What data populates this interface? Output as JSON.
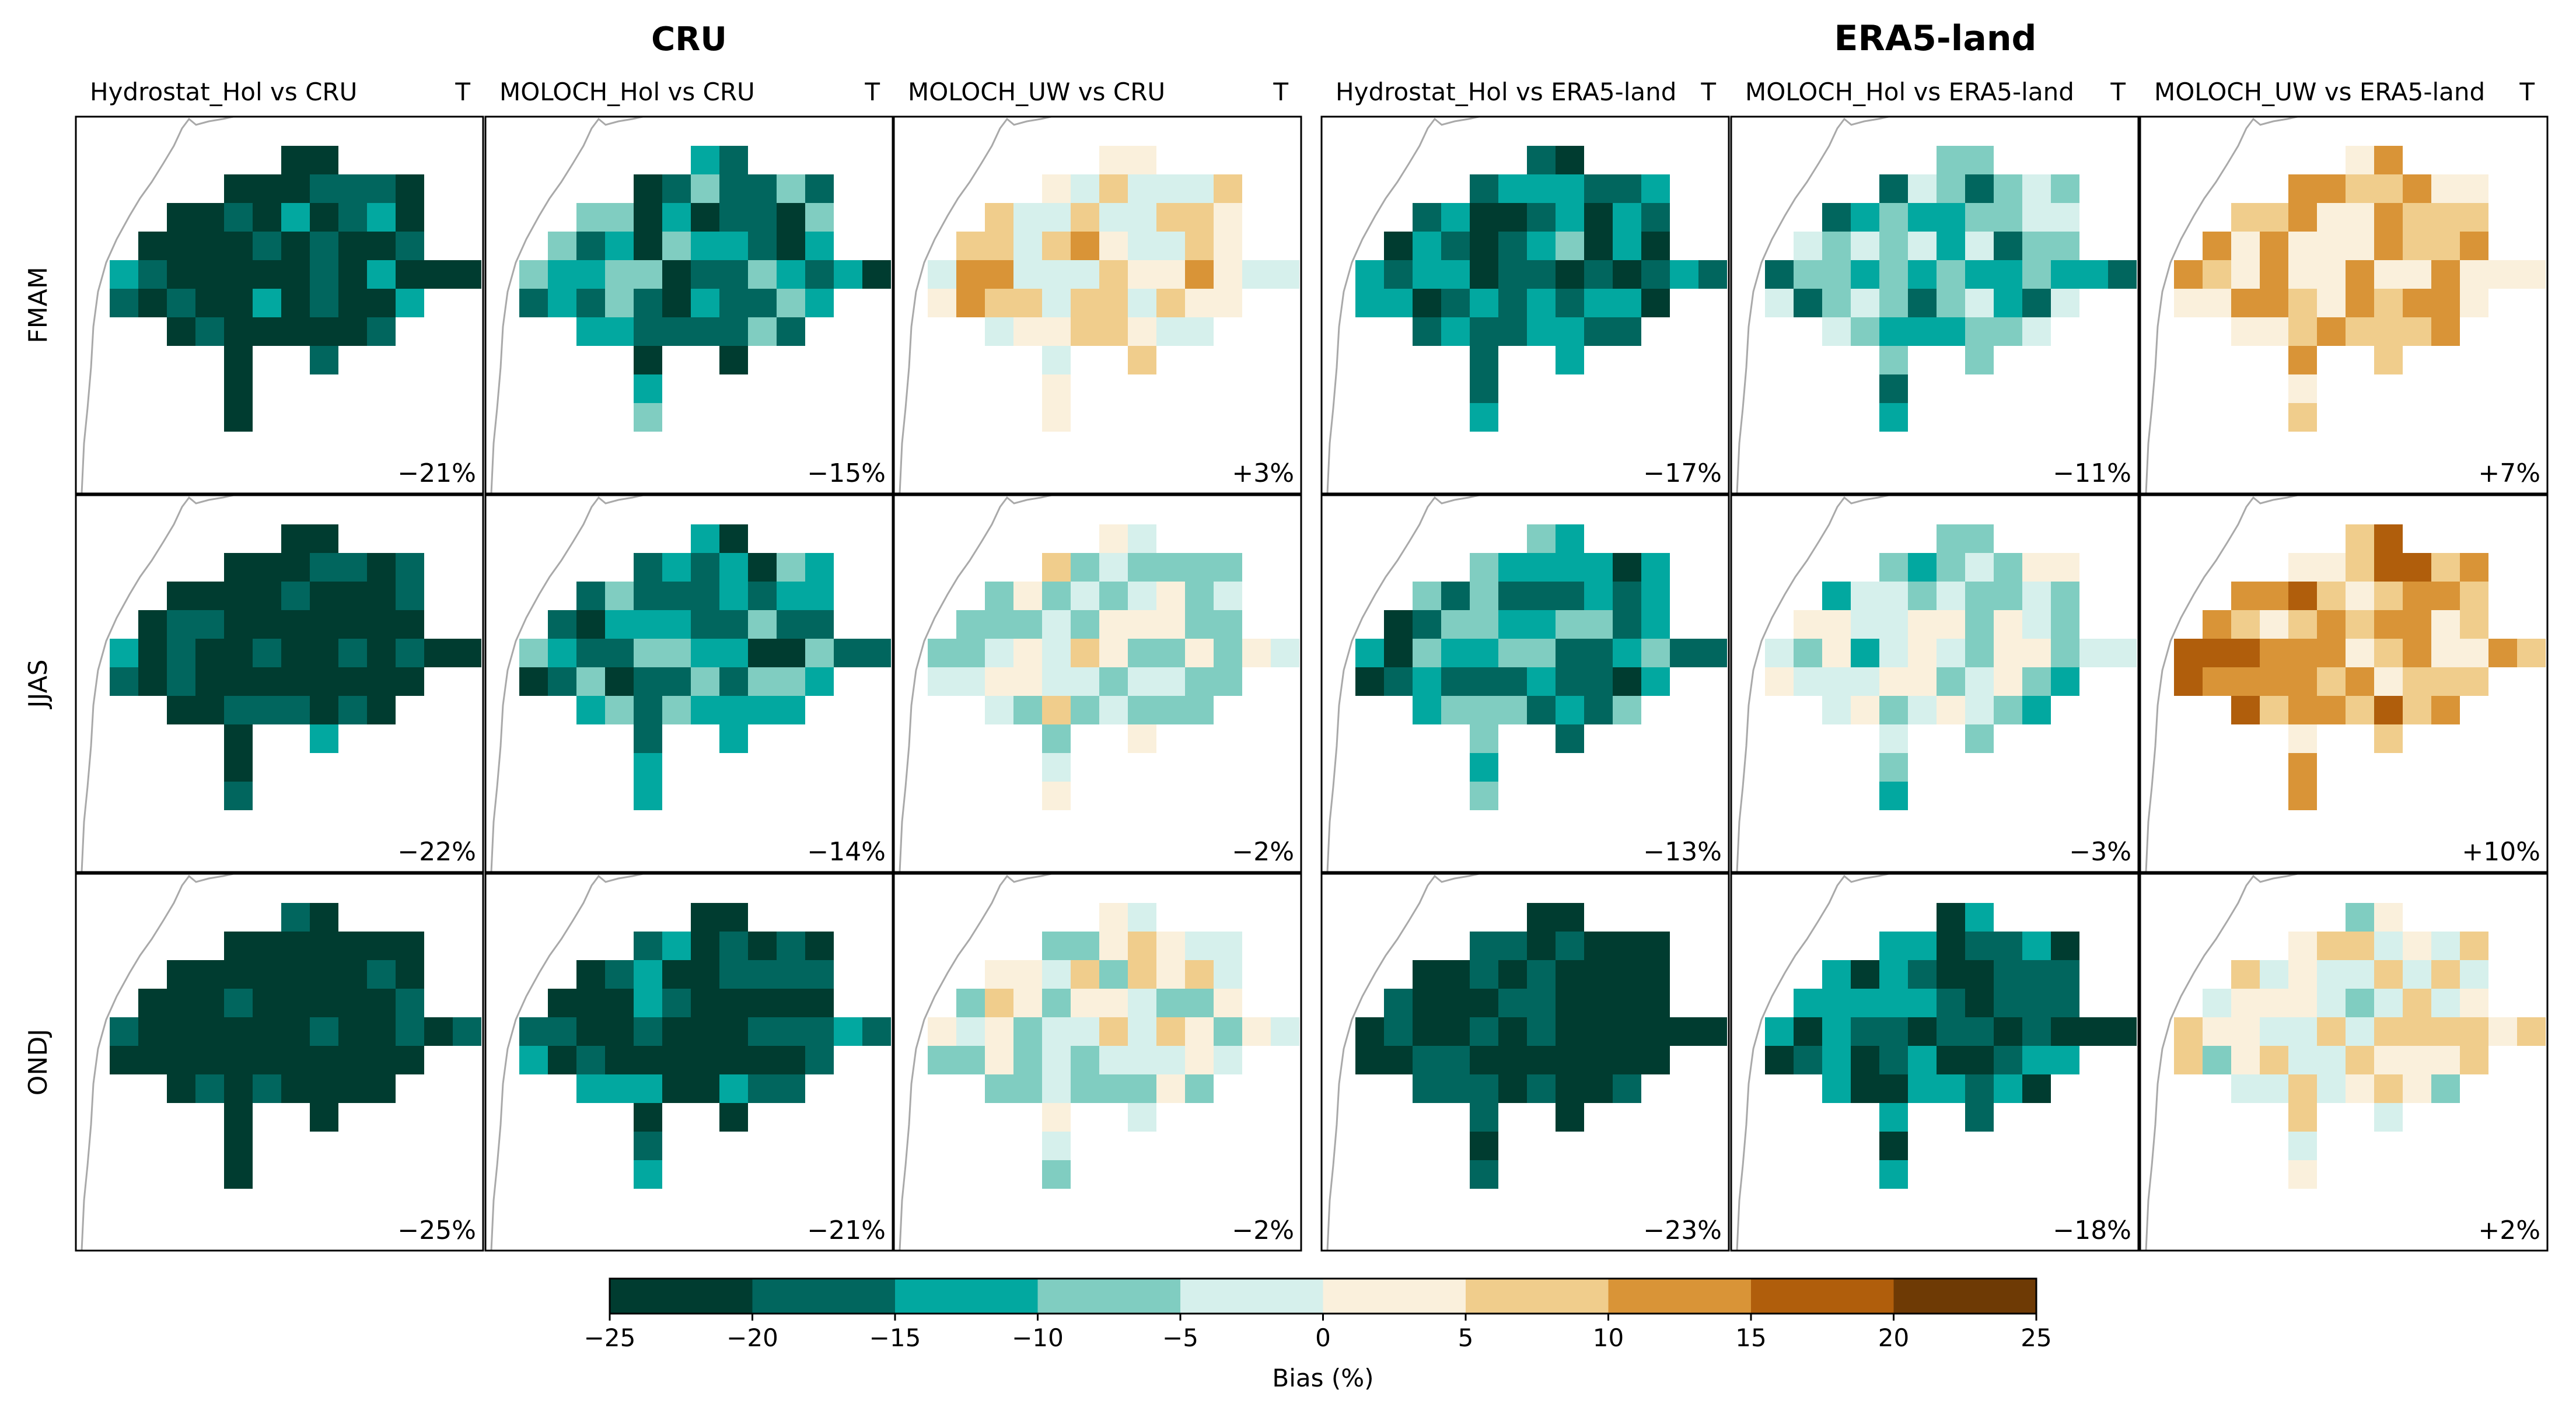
{
  "chart_data": {
    "type": "heatmap",
    "figure_note": "3x6 grid of gridded bias maps (temperature T). Rows = seasons, columns = model vs reference. Cell values are bias in %.",
    "group_titles": [
      "CRU",
      "ERA5-land"
    ],
    "variable_label": "T",
    "columns": [
      "Hydrostat_Hol vs CRU",
      "MOLOCH_Hol vs CRU",
      "MOLOCH_UW vs CRU",
      "Hydrostat_Hol vs ERA5-land",
      "MOLOCH_Hol vs ERA5-land",
      "MOLOCH_UW vs ERA5-land"
    ],
    "rows": [
      "FMAM",
      "JJAS",
      "ONDJ"
    ],
    "mean_bias_labels": [
      [
        "−21%",
        "−15%",
        "+3%",
        "−17%",
        "−11%",
        "+7%"
      ],
      [
        "−22%",
        "−14%",
        "−2%",
        "−13%",
        "−3%",
        "+10%"
      ],
      [
        "−25%",
        "−21%",
        "−2%",
        "−23%",
        "−18%",
        "+2%"
      ]
    ],
    "mean_bias_values": [
      [
        -21,
        -15,
        3,
        -17,
        -11,
        7
      ],
      [
        -22,
        -14,
        -2,
        -13,
        -3,
        10
      ],
      [
        -25,
        -21,
        -2,
        -23,
        -18,
        2
      ]
    ],
    "grid_mask": [
      "0000001100000",
      "0000111111100",
      "0011111111100",
      "0111111111100",
      "1111111111111",
      "1111111111100",
      "0011111111000",
      "0000100100000",
      "0000100000000",
      "0000100000000"
    ],
    "colorbar": {
      "label": "Bias (%)",
      "ticks": [
        -25,
        -20,
        -15,
        -10,
        -5,
        0,
        5,
        10,
        15,
        20,
        25
      ],
      "tick_labels": [
        "−25",
        "−20",
        "−15",
        "−10",
        "−5",
        "0",
        "5",
        "10",
        "15",
        "20",
        "25"
      ],
      "range": [
        -25,
        25
      ],
      "colors": [
        "#003c30",
        "#01665e",
        "#02a8a0",
        "#80cdc1",
        "#d6f0ec",
        "#faf0dc",
        "#f0cd8c",
        "#d99437",
        "#b05e0c",
        "#6e3a05"
      ]
    }
  }
}
